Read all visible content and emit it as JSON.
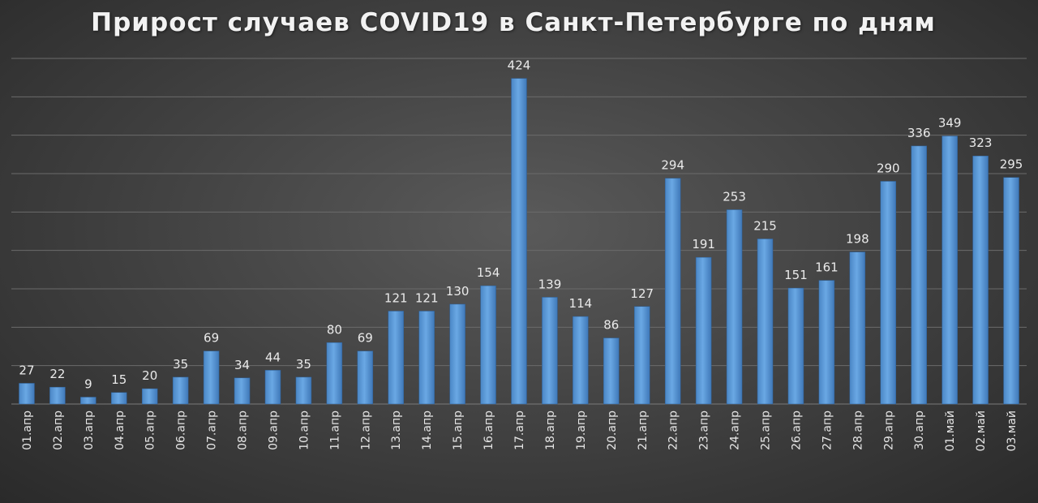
{
  "chart_data": {
    "type": "bar",
    "title": "Прирост случаев COVID19 в Санкт-Петербурге по дням",
    "xlabel": "",
    "ylabel": "",
    "ylim": [
      0,
      450
    ],
    "grid": true,
    "legend": "none",
    "bar_color": "#5b9bd5",
    "categories": [
      "01.апр",
      "02.апр",
      "03.апр",
      "04.апр",
      "05.апр",
      "06.апр",
      "07.апр",
      "08.апр",
      "09.апр",
      "10.апр",
      "11.апр",
      "12.апр",
      "13.апр",
      "14.апр",
      "15.апр",
      "16.апр",
      "17.апр",
      "18.апр",
      "19.апр",
      "20.апр",
      "21.апр",
      "22.апр",
      "23.апр",
      "24.апр",
      "25.апр",
      "26.апр",
      "27.апр",
      "28.апр",
      "29.апр",
      "30.апр",
      "01.май",
      "02.май",
      "03.май"
    ],
    "values": [
      27,
      22,
      9,
      15,
      20,
      35,
      69,
      34,
      44,
      35,
      80,
      69,
      121,
      121,
      130,
      154,
      424,
      139,
      114,
      86,
      127,
      294,
      191,
      253,
      215,
      151,
      161,
      198,
      290,
      336,
      349,
      323,
      295
    ]
  }
}
